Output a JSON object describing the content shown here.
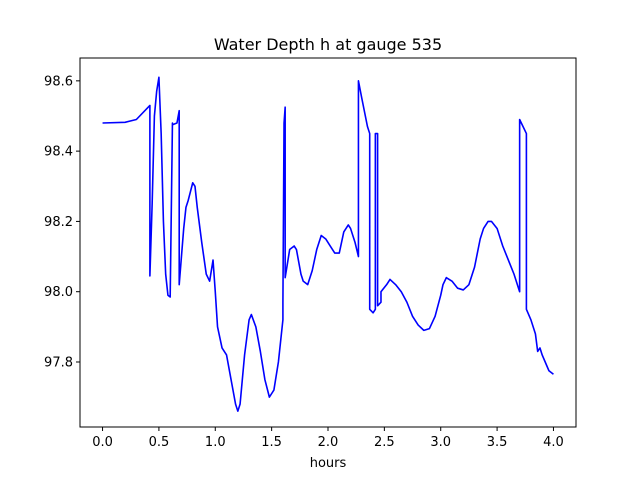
{
  "chart_data": {
    "type": "line",
    "title": "Water Depth h at gauge 535",
    "xlabel": "hours",
    "ylabel": "",
    "xlim": [
      -0.2,
      4.2
    ],
    "ylim": [
      97.615,
      98.665
    ],
    "xticks": [
      0.0,
      0.5,
      1.0,
      1.5,
      2.0,
      2.5,
      3.0,
      3.5,
      4.0
    ],
    "xtick_labels": [
      "0.0",
      "0.5",
      "1.0",
      "1.5",
      "2.0",
      "2.5",
      "3.0",
      "3.5",
      "4.0"
    ],
    "yticks": [
      97.8,
      98.0,
      98.2,
      98.4,
      98.6
    ],
    "ytick_labels": [
      "97.8",
      "98.0",
      "98.2",
      "98.4",
      "98.6"
    ],
    "grid": false,
    "series": [
      {
        "name": "h",
        "color": "#0000ff",
        "x": [
          0.0,
          0.2,
          0.3,
          0.42,
          0.42,
          0.44,
          0.46,
          0.48,
          0.5,
          0.52,
          0.54,
          0.56,
          0.58,
          0.6,
          0.62,
          0.62,
          0.66,
          0.68,
          0.68,
          0.7,
          0.72,
          0.74,
          0.76,
          0.8,
          0.82,
          0.84,
          0.88,
          0.92,
          0.95,
          0.98,
          1.0,
          1.02,
          1.06,
          1.1,
          1.14,
          1.18,
          1.2,
          1.22,
          1.26,
          1.3,
          1.32,
          1.36,
          1.4,
          1.44,
          1.48,
          1.52,
          1.56,
          1.6,
          1.6,
          1.61,
          1.62,
          1.62,
          1.64,
          1.66,
          1.7,
          1.72,
          1.76,
          1.78,
          1.82,
          1.86,
          1.9,
          1.94,
          1.98,
          2.02,
          2.06,
          2.1,
          2.14,
          2.18,
          2.2,
          2.24,
          2.27,
          2.27,
          2.3,
          2.35,
          2.37,
          2.37,
          2.4,
          2.42,
          2.42,
          2.44,
          2.44,
          2.47,
          2.47,
          2.52,
          2.55,
          2.6,
          2.65,
          2.7,
          2.75,
          2.8,
          2.85,
          2.9,
          2.95,
          3.0,
          3.02,
          3.05,
          3.1,
          3.15,
          3.2,
          3.25,
          3.3,
          3.35,
          3.38,
          3.42,
          3.45,
          3.5,
          3.55,
          3.6,
          3.65,
          3.7,
          3.7,
          3.76,
          3.76,
          3.8,
          3.84,
          3.86,
          3.88,
          3.9,
          3.94,
          3.96,
          3.98,
          4.0
        ],
        "y": [
          98.48,
          98.482,
          98.49,
          98.53,
          98.045,
          98.25,
          98.5,
          98.57,
          98.61,
          98.45,
          98.2,
          98.05,
          97.99,
          97.985,
          98.48,
          98.475,
          98.48,
          98.515,
          98.02,
          98.1,
          98.18,
          98.24,
          98.26,
          98.31,
          98.3,
          98.24,
          98.14,
          98.05,
          98.03,
          98.09,
          98.0,
          97.9,
          97.84,
          97.82,
          97.75,
          97.68,
          97.66,
          97.68,
          97.82,
          97.92,
          97.935,
          97.9,
          97.83,
          97.75,
          97.7,
          97.72,
          97.8,
          97.92,
          97.97,
          98.48,
          98.525,
          98.04,
          98.08,
          98.12,
          98.13,
          98.12,
          98.05,
          98.03,
          98.02,
          98.06,
          98.12,
          98.16,
          98.15,
          98.13,
          98.11,
          98.11,
          98.17,
          98.19,
          98.18,
          98.14,
          98.1,
          98.6,
          98.55,
          98.47,
          98.45,
          97.95,
          97.94,
          97.95,
          98.45,
          98.45,
          97.96,
          97.97,
          98.0,
          98.02,
          98.035,
          98.02,
          98.0,
          97.97,
          97.93,
          97.905,
          97.89,
          97.895,
          97.93,
          97.99,
          98.02,
          98.04,
          98.03,
          98.01,
          98.005,
          98.02,
          98.07,
          98.15,
          98.18,
          98.2,
          98.2,
          98.18,
          98.13,
          98.09,
          98.05,
          98.0,
          98.49,
          98.45,
          97.95,
          97.92,
          97.88,
          97.83,
          97.84,
          97.82,
          97.79,
          97.775,
          97.77,
          97.765
        ]
      }
    ]
  }
}
